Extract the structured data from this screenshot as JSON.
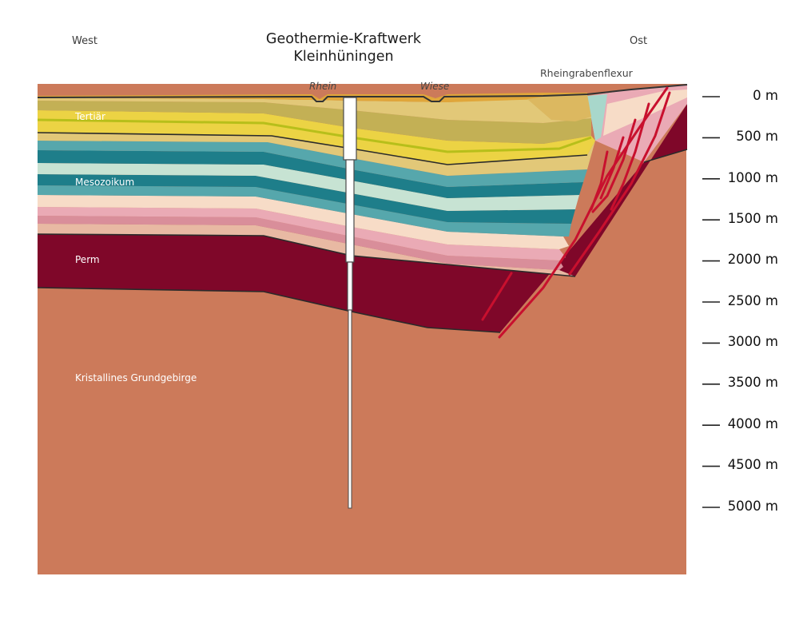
{
  "title": {
    "line1": "Geothermie-Kraftwerk",
    "line2": "Kleinhüningen"
  },
  "directions": {
    "west": "West",
    "east": "Ost"
  },
  "surface_labels": {
    "rhein": "Rhein",
    "wiese": "Wiese",
    "flexur": "Rheingrabenflexur"
  },
  "layers": {
    "tertiaer": "Tertiär",
    "mesozoikum": "Mesozoikum",
    "perm": "Perm",
    "grundgebirge": "Kristallines Grundgebirge"
  },
  "depth_scale": [
    "0 m",
    "500 m",
    "1000 m",
    "1500 m",
    "2000 m",
    "2500 m",
    "3000 m",
    "3500 m",
    "4000 m",
    "4500 m",
    "5000 m"
  ],
  "colors": {
    "grundgebirge": "#cc7a5a",
    "perm": "#7f0729",
    "tertiaer_light": "#e2c878",
    "tertiaer_yellow": "#ecd344",
    "tertiaer_olive": "#c3b055",
    "mesozoic_teal": "#1e7e8a",
    "mesozoic_mid": "#56a7ac",
    "mesozoic_light": "#c7e3d3",
    "mesozoic_cream": "#f7dcc7",
    "mesozoic_pink": "#eaaab5",
    "mesozoic_mauve": "#d98e9a",
    "mesozoic_tan": "#e8b9a3",
    "fault": "#c8102e"
  }
}
